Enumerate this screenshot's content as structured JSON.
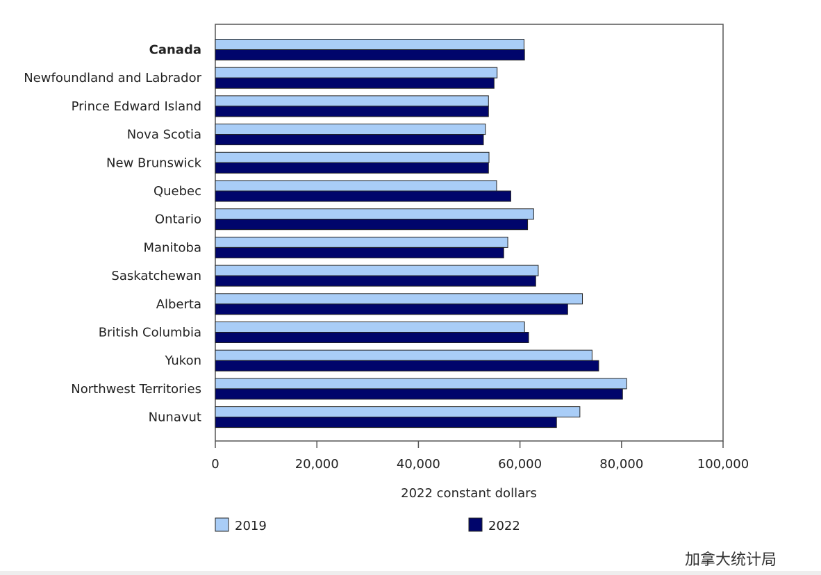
{
  "chart_data": {
    "type": "bar",
    "orientation": "horizontal",
    "categories": [
      "Canada",
      "Newfoundland and Labrador",
      "Prince Edward Island",
      "Nova Scotia",
      "New Brunswick",
      "Quebec",
      "Ontario",
      "Manitoba",
      "Saskatchewan",
      "Alberta",
      "British Columbia",
      "Yukon",
      "Northwest Territories",
      "Nunavut"
    ],
    "bold_categories": [
      "Canada"
    ],
    "series": [
      {
        "name": "2019",
        "color": "#a9cdf7",
        "values": [
          60800,
          55500,
          53800,
          53200,
          53900,
          55400,
          62700,
          57600,
          63600,
          72300,
          60900,
          74200,
          81000,
          71800
        ]
      },
      {
        "name": "2022",
        "color": "#00056b",
        "values": [
          60900,
          54900,
          53800,
          52800,
          53800,
          58200,
          61500,
          56800,
          63100,
          69400,
          61700,
          75500,
          80200,
          67200
        ]
      }
    ],
    "xlabel": "2022 constant dollars",
    "xlim": [
      0,
      100000
    ],
    "xticks": [
      0,
      20000,
      40000,
      60000,
      80000,
      100000
    ],
    "xtick_labels": [
      "0",
      "20,000",
      "40,000",
      "60,000",
      "80,000",
      "100,000"
    ],
    "grid": false,
    "legend_position": "bottom"
  },
  "watermark": "加拿大统计局"
}
